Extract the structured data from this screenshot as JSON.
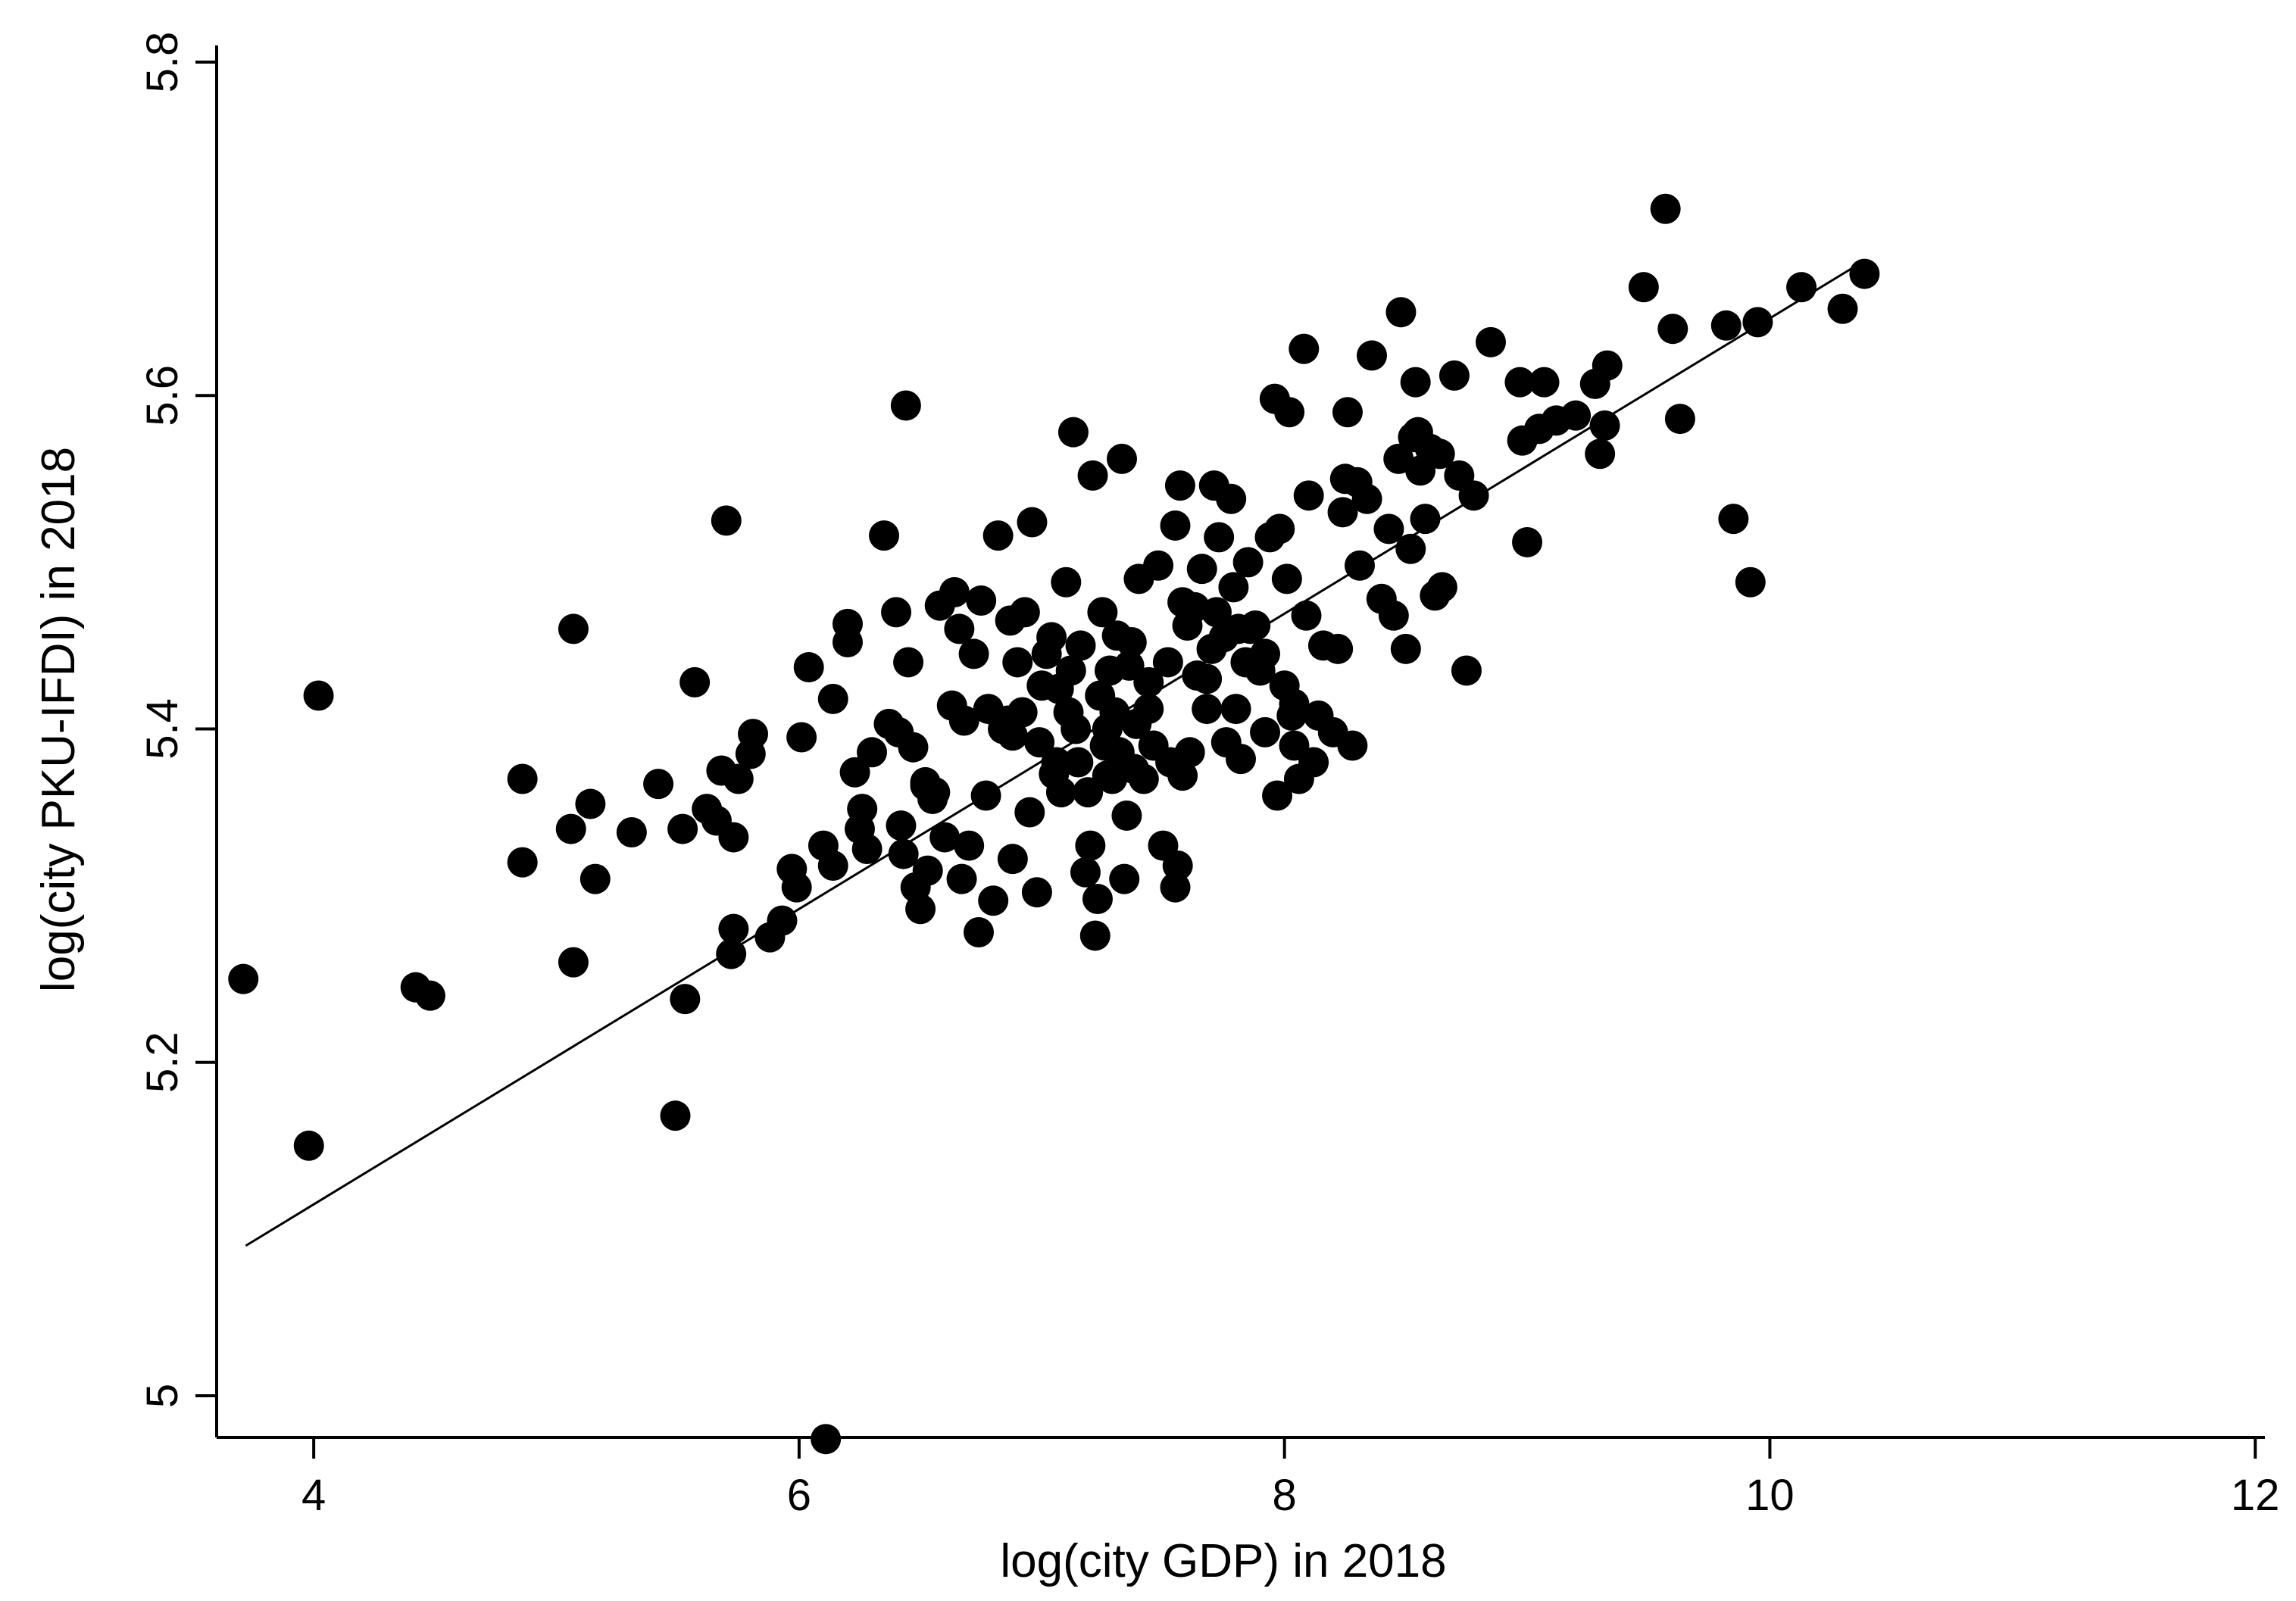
{
  "chart_data": {
    "type": "scatter",
    "title": "",
    "xlabel": "log(city GDP) in 2018",
    "ylabel": "log(city PKU-IFDI) in 2018",
    "xlim": [
      3.6,
      12.04
    ],
    "ylim": [
      4.975,
      5.81
    ],
    "xticks": [
      {
        "value": 4,
        "label": "4"
      },
      {
        "value": 6,
        "label": "6"
      },
      {
        "value": 8,
        "label": "8"
      },
      {
        "value": 10,
        "label": "10"
      },
      {
        "value": 12,
        "label": "12"
      }
    ],
    "yticks": [
      {
        "value": 5.0,
        "label": "5"
      },
      {
        "value": 5.2,
        "label": "5.2"
      },
      {
        "value": 5.4,
        "label": "5.4"
      },
      {
        "value": 5.6,
        "label": "5.6"
      },
      {
        "value": 5.8,
        "label": "5.8"
      }
    ],
    "grid": false,
    "legend": "none",
    "point_color": "#000000",
    "fit_line": {
      "x": [
        3.72,
        10.38
      ],
      "y": [
        5.09,
        5.68
      ]
    },
    "points": [
      [
        3.71,
        5.25
      ],
      [
        3.98,
        5.15
      ],
      [
        4.02,
        5.42
      ],
      [
        4.42,
        5.245
      ],
      [
        4.48,
        5.24
      ],
      [
        4.86,
        5.37
      ],
      [
        4.86,
        5.32
      ],
      [
        5.06,
        5.34
      ],
      [
        5.07,
        5.46
      ],
      [
        5.07,
        5.26
      ],
      [
        5.14,
        5.355
      ],
      [
        5.16,
        5.31
      ],
      [
        5.31,
        5.338
      ],
      [
        5.42,
        5.367
      ],
      [
        5.49,
        5.168
      ],
      [
        5.52,
        5.34
      ],
      [
        5.53,
        5.238
      ],
      [
        5.57,
        5.428
      ],
      [
        5.62,
        5.352
      ],
      [
        5.66,
        5.345
      ],
      [
        5.68,
        5.375
      ],
      [
        5.7,
        5.525
      ],
      [
        5.72,
        5.265
      ],
      [
        5.73,
        5.28
      ],
      [
        5.73,
        5.335
      ],
      [
        5.75,
        5.37
      ],
      [
        5.8,
        5.385
      ],
      [
        5.81,
        5.397
      ],
      [
        5.88,
        5.275
      ],
      [
        5.93,
        5.285
      ],
      [
        5.97,
        5.316
      ],
      [
        5.99,
        5.305
      ],
      [
        6.01,
        5.395
      ],
      [
        6.04,
        5.437
      ],
      [
        6.1,
        5.33
      ],
      [
        6.11,
        4.974
      ],
      [
        6.14,
        5.318
      ],
      [
        6.14,
        5.418
      ],
      [
        6.2,
        5.463
      ],
      [
        6.2,
        5.452
      ],
      [
        6.23,
        5.374
      ],
      [
        6.25,
        5.34
      ],
      [
        6.26,
        5.352
      ],
      [
        6.28,
        5.328
      ],
      [
        6.3,
        5.386
      ],
      [
        6.35,
        5.516
      ],
      [
        6.37,
        5.403
      ],
      [
        6.4,
        5.47
      ],
      [
        6.41,
        5.398
      ],
      [
        6.42,
        5.342
      ],
      [
        6.43,
        5.325
      ],
      [
        6.44,
        5.594
      ],
      [
        6.45,
        5.44
      ],
      [
        6.47,
        5.389
      ],
      [
        6.48,
        5.305
      ],
      [
        6.5,
        5.292
      ],
      [
        6.52,
        5.368
      ],
      [
        6.53,
        5.315
      ],
      [
        6.55,
        5.358
      ],
      [
        6.56,
        5.362
      ],
      [
        6.58,
        5.474
      ],
      [
        6.6,
        5.335
      ],
      [
        6.63,
        5.414
      ],
      [
        6.64,
        5.482
      ],
      [
        6.66,
        5.46
      ],
      [
        6.67,
        5.31
      ],
      [
        6.7,
        5.33
      ],
      [
        6.72,
        5.445
      ],
      [
        6.74,
        5.278
      ],
      [
        6.75,
        5.477
      ],
      [
        6.77,
        5.36
      ],
      [
        6.78,
        5.412
      ],
      [
        6.8,
        5.297
      ],
      [
        6.82,
        5.516
      ],
      [
        6.84,
        5.4
      ],
      [
        6.87,
        5.465
      ],
      [
        6.88,
        5.322
      ],
      [
        6.9,
        5.44
      ],
      [
        6.92,
        5.41
      ],
      [
        6.93,
        5.47
      ],
      [
        6.95,
        5.35
      ],
      [
        6.96,
        5.524
      ],
      [
        6.98,
        5.302
      ],
      [
        6.99,
        5.392
      ],
      [
        7.0,
        5.426
      ],
      [
        7.02,
        5.445
      ],
      [
        7.04,
        5.455
      ],
      [
        7.05,
        5.373
      ],
      [
        7.07,
        5.424
      ],
      [
        7.08,
        5.362
      ],
      [
        7.1,
        5.488
      ],
      [
        7.11,
        5.41
      ],
      [
        7.12,
        5.435
      ],
      [
        7.13,
        5.578
      ],
      [
        7.15,
        5.38
      ],
      [
        7.16,
        5.45
      ],
      [
        7.18,
        5.314
      ],
      [
        7.2,
        5.33
      ],
      [
        7.21,
        5.552
      ],
      [
        7.22,
        5.276
      ],
      [
        7.23,
        5.298
      ],
      [
        7.24,
        5.42
      ],
      [
        7.25,
        5.47
      ],
      [
        7.26,
        5.39
      ],
      [
        7.27,
        5.4
      ],
      [
        7.28,
        5.435
      ],
      [
        7.29,
        5.37
      ],
      [
        7.3,
        5.41
      ],
      [
        7.31,
        5.456
      ],
      [
        7.32,
        5.386
      ],
      [
        7.33,
        5.562
      ],
      [
        7.34,
        5.31
      ],
      [
        7.35,
        5.348
      ],
      [
        7.36,
        5.438
      ],
      [
        7.37,
        5.452
      ],
      [
        7.38,
        5.376
      ],
      [
        7.39,
        5.403
      ],
      [
        7.4,
        5.49
      ],
      [
        7.42,
        5.37
      ],
      [
        7.44,
        5.412
      ],
      [
        7.46,
        5.39
      ],
      [
        7.48,
        5.498
      ],
      [
        7.5,
        5.33
      ],
      [
        7.52,
        5.44
      ],
      [
        7.53,
        5.38
      ],
      [
        7.55,
        5.522
      ],
      [
        7.55,
        5.305
      ],
      [
        7.56,
        5.318
      ],
      [
        7.57,
        5.546
      ],
      [
        7.58,
        5.372
      ],
      [
        7.6,
        5.462
      ],
      [
        7.61,
        5.386
      ],
      [
        7.63,
        5.473
      ],
      [
        7.64,
        5.432
      ],
      [
        7.66,
        5.496
      ],
      [
        7.68,
        5.43
      ],
      [
        7.7,
        5.448
      ],
      [
        7.71,
        5.546
      ],
      [
        7.72,
        5.47
      ],
      [
        7.73,
        5.515
      ],
      [
        7.75,
        5.455
      ],
      [
        7.76,
        5.392
      ],
      [
        7.78,
        5.538
      ],
      [
        7.79,
        5.485
      ],
      [
        7.8,
        5.412
      ],
      [
        7.81,
        5.46
      ],
      [
        7.82,
        5.382
      ],
      [
        7.84,
        5.44
      ],
      [
        7.85,
        5.5
      ],
      [
        7.86,
        5.46
      ],
      [
        7.88,
        5.462
      ],
      [
        7.9,
        5.435
      ],
      [
        7.92,
        5.398
      ],
      [
        7.94,
        5.515
      ],
      [
        7.96,
        5.598
      ],
      [
        7.97,
        5.36
      ],
      [
        7.98,
        5.52
      ],
      [
        8.0,
        5.426
      ],
      [
        8.01,
        5.49
      ],
      [
        8.02,
        5.59
      ],
      [
        8.03,
        5.408
      ],
      [
        8.04,
        5.39
      ],
      [
        8.06,
        5.37
      ],
      [
        8.08,
        5.628
      ],
      [
        8.09,
        5.468
      ],
      [
        8.1,
        5.54
      ],
      [
        8.12,
        5.38
      ],
      [
        8.14,
        5.408
      ],
      [
        8.16,
        5.45
      ],
      [
        8.2,
        5.398
      ],
      [
        8.22,
        5.448
      ],
      [
        8.24,
        5.53
      ],
      [
        8.25,
        5.55
      ],
      [
        8.26,
        5.59
      ],
      [
        8.28,
        5.39
      ],
      [
        8.3,
        5.548
      ],
      [
        8.31,
        5.498
      ],
      [
        8.34,
        5.538
      ],
      [
        8.36,
        5.624
      ],
      [
        8.4,
        5.478
      ],
      [
        8.43,
        5.52
      ],
      [
        8.45,
        5.468
      ],
      [
        8.47,
        5.562
      ],
      [
        8.48,
        5.65
      ],
      [
        8.5,
        5.448
      ],
      [
        8.52,
        5.508
      ],
      [
        8.53,
        5.575
      ],
      [
        8.54,
        5.608
      ],
      [
        8.55,
        5.578
      ],
      [
        8.56,
        5.555
      ],
      [
        8.58,
        5.526
      ],
      [
        8.6,
        5.568
      ],
      [
        8.62,
        5.48
      ],
      [
        8.64,
        5.565
      ],
      [
        8.65,
        5.485
      ],
      [
        8.7,
        5.612
      ],
      [
        8.72,
        5.552
      ],
      [
        8.75,
        5.435
      ],
      [
        8.78,
        5.54
      ],
      [
        8.85,
        5.632
      ],
      [
        8.97,
        5.608
      ],
      [
        8.98,
        5.573
      ],
      [
        9.0,
        5.512
      ],
      [
        9.05,
        5.58
      ],
      [
        9.07,
        5.608
      ],
      [
        9.12,
        5.585
      ],
      [
        9.2,
        5.588
      ],
      [
        9.28,
        5.607
      ],
      [
        9.3,
        5.565
      ],
      [
        9.32,
        5.582
      ],
      [
        9.33,
        5.618
      ],
      [
        9.48,
        5.665
      ],
      [
        9.57,
        5.712
      ],
      [
        9.6,
        5.64
      ],
      [
        9.63,
        5.586
      ],
      [
        9.82,
        5.642
      ],
      [
        9.85,
        5.526
      ],
      [
        9.92,
        5.488
      ],
      [
        9.95,
        5.644
      ],
      [
        10.13,
        5.665
      ],
      [
        10.3,
        5.652
      ],
      [
        10.39,
        5.673
      ],
      [
        6.52,
        5.366
      ],
      [
        6.86,
        5.405
      ],
      [
        7.06,
        5.38
      ],
      [
        7.14,
        5.4
      ],
      [
        7.44,
        5.428
      ],
      [
        7.68,
        5.412
      ],
      [
        7.92,
        5.445
      ],
      [
        8.04,
        5.415
      ],
      [
        6.88,
        5.396
      ],
      [
        7.19,
        5.362
      ],
      [
        7.58,
        5.476
      ],
      [
        6.68,
        5.405
      ],
      [
        7.27,
        5.372
      ]
    ]
  }
}
